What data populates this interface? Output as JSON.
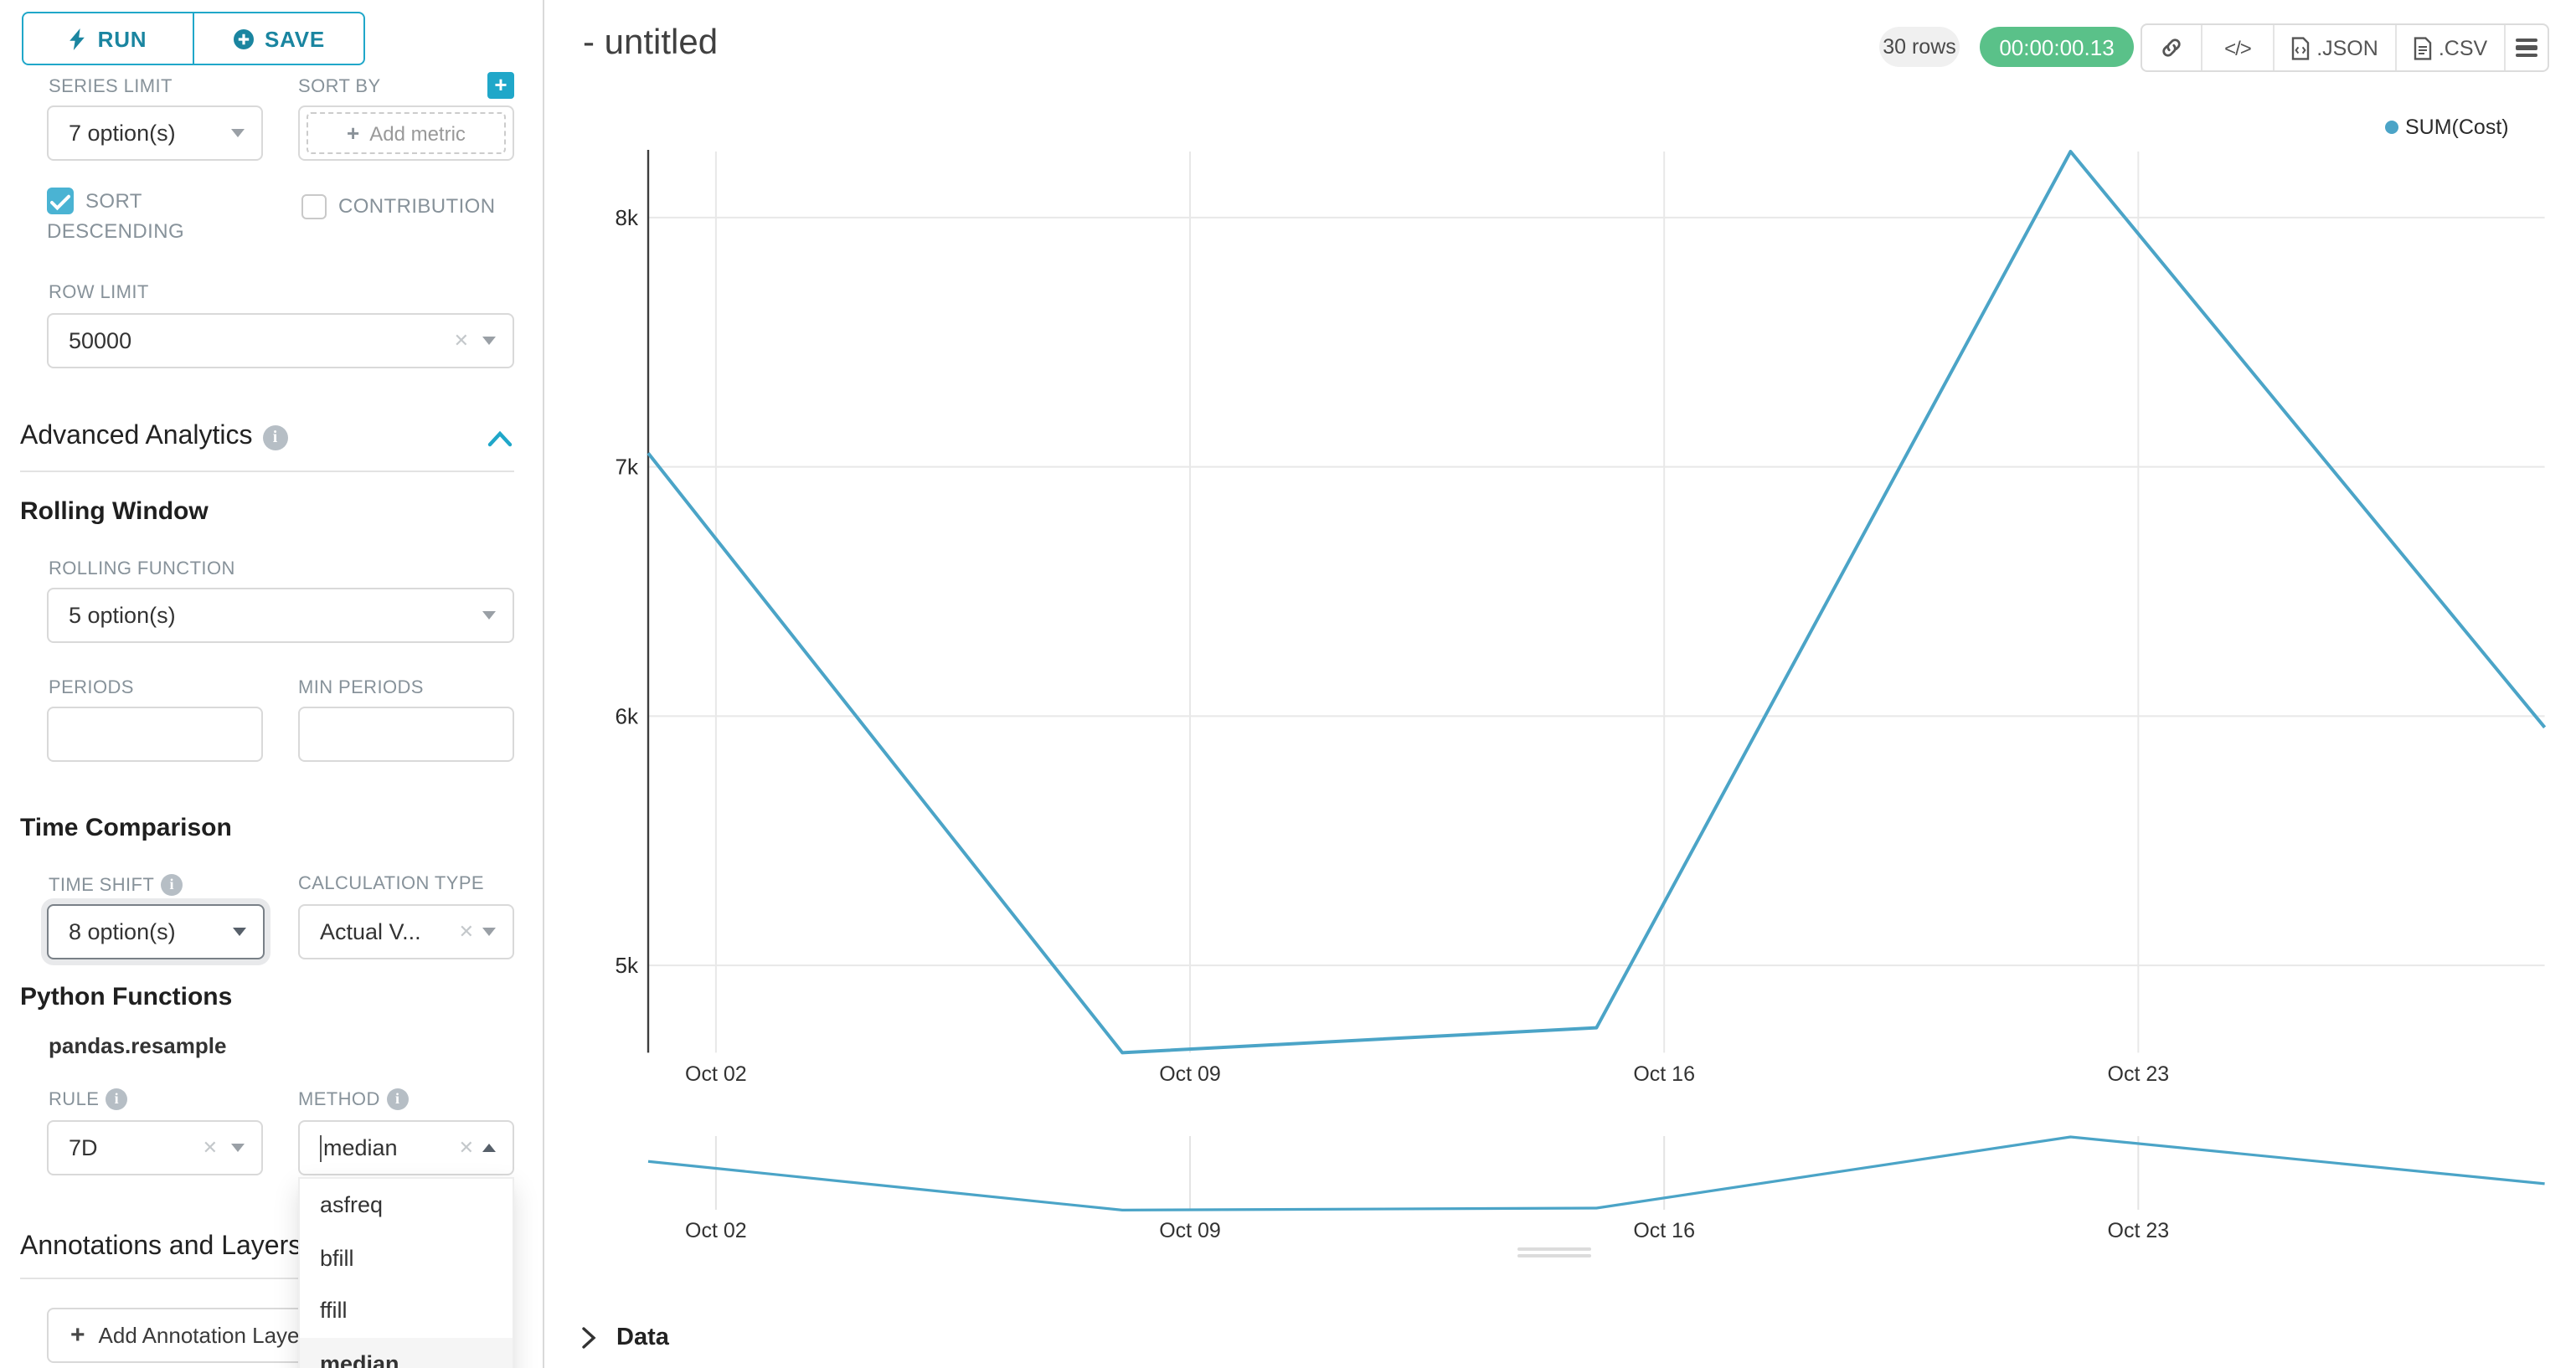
{
  "panel": {
    "run_label": "RUN",
    "save_label": "SAVE",
    "series_limit_label": "SERIES LIMIT",
    "series_limit_value": "7 option(s)",
    "sort_by_label": "SORT BY",
    "sort_by_placeholder": "Add metric",
    "sort_descending_label": "SORT DESCENDING",
    "sort_descending_checked": true,
    "contribution_label": "CONTRIBUTION",
    "contribution_checked": false,
    "row_limit_label": "ROW LIMIT",
    "row_limit_value": "50000",
    "advanced_analytics_title": "Advanced Analytics",
    "rolling_window_title": "Rolling Window",
    "rolling_function_label": "ROLLING FUNCTION",
    "rolling_function_value": "5 option(s)",
    "periods_label": "PERIODS",
    "periods_value": "",
    "min_periods_label": "MIN PERIODS",
    "min_periods_value": "",
    "time_comparison_title": "Time Comparison",
    "time_shift_label": "TIME SHIFT",
    "time_shift_value": "8 option(s)",
    "calculation_type_label": "CALCULATION TYPE",
    "calculation_type_value": "Actual V...",
    "python_functions_title": "Python Functions",
    "resample_label": "pandas.resample",
    "rule_label": "RULE",
    "rule_value": "7D",
    "method_label": "METHOD",
    "method_value": "median",
    "method_options": [
      "asfreq",
      "bfill",
      "ffill",
      "median"
    ],
    "method_selected": "median",
    "annotations_title": "Annotations and Layers",
    "add_annotation_label": "Add Annotation Layer"
  },
  "header": {
    "title": "- untitled",
    "row_count_badge": "30 rows",
    "timer_badge": "00:00:00.13",
    "json_label": ".JSON",
    "csv_label": ".CSV"
  },
  "data_panel": {
    "label": "Data"
  },
  "chart_data": {
    "type": "line",
    "title": "- untitled",
    "legend": {
      "entries": [
        "SUM(Cost)"
      ],
      "position": "top-right"
    },
    "x_axis": {
      "type": "time",
      "tick_labels": [
        "Oct 02",
        "Oct 09",
        "Oct 16",
        "Oct 23"
      ],
      "tick_days": [
        1,
        8,
        15,
        22
      ],
      "range_days": [
        0,
        28
      ]
    },
    "y_axis": {
      "ticks": [
        {
          "value": 5000,
          "label": "5k"
        },
        {
          "value": 6000,
          "label": "6k"
        },
        {
          "value": 7000,
          "label": "7k"
        },
        {
          "value": 8000,
          "label": "8k"
        }
      ],
      "ylim": [
        4650,
        8265
      ]
    },
    "series": [
      {
        "name": "SUM(Cost)",
        "color": "#4BA4C7",
        "points": [
          {
            "date": "Oct 01",
            "day": 0,
            "value": 7055
          },
          {
            "date": "Oct 08",
            "day": 7,
            "value": 4650
          },
          {
            "date": "Oct 15",
            "day": 14,
            "value": 4750
          },
          {
            "date": "Oct 22",
            "day": 21,
            "value": 8265
          },
          {
            "date": "Oct 29",
            "day": 28,
            "value": 5955
          }
        ]
      }
    ],
    "grid": true,
    "mini_preview": {
      "shown": true,
      "tick_labels": [
        "Oct 02",
        "Oct 09",
        "Oct 16",
        "Oct 23"
      ]
    }
  },
  "colors": {
    "primary": "#20a7c9",
    "primary_dark": "#1a85a0",
    "checkbox": "#4ab3d3",
    "success": "#5ac189",
    "series": "#4BA4C7"
  }
}
